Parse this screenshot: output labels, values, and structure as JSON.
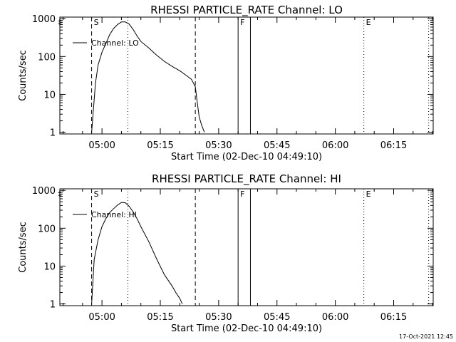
{
  "footer": {
    "timestamp": "17-Oct-2021 12:45"
  },
  "chart_data": [
    {
      "type": "line",
      "title": "RHESSI PARTICLE_RATE Channel: LO",
      "xlabel": "Start Time (02-Dec-10 04:49:10)",
      "ylabel": "Counts/sec",
      "y_scale": "log",
      "ylim": [
        0.9,
        1100
      ],
      "xlim": [
        "04:49:10",
        "06:25:10"
      ],
      "x_ticks": [
        "05:00",
        "05:15",
        "05:30",
        "05:45",
        "06:00",
        "06:15"
      ],
      "y_ticks": [
        "1",
        "10",
        "100",
        "1000"
      ],
      "legend": {
        "label": "Channel: LO",
        "position": "top-left"
      },
      "markers": [
        {
          "label": "S",
          "time": "04:57:20",
          "style": "dashed"
        },
        {
          "label": "",
          "time": "05:06:40",
          "style": "dotted"
        },
        {
          "label": "",
          "time": "05:24:00",
          "style": "dashed"
        },
        {
          "label": "F",
          "time": "05:35:00",
          "style": "solid"
        },
        {
          "label": "",
          "time": "05:38:10",
          "style": "solid"
        },
        {
          "label": "E",
          "time": "06:07:20",
          "style": "dotted"
        },
        {
          "label": "",
          "time": "06:24:00",
          "style": "dotted"
        }
      ],
      "series": [
        {
          "name": "Channel: LO",
          "x": [
            "04:57:20",
            "04:58:20",
            "04:59:00",
            "05:00:00",
            "05:01:00",
            "05:02:00",
            "05:03:00",
            "05:04:00",
            "05:05:00",
            "05:06:00",
            "05:07:00",
            "05:08:00",
            "05:09:00",
            "05:10:00",
            "05:12:00",
            "05:14:00",
            "05:16:00",
            "05:18:00",
            "05:20:00",
            "05:22:00",
            "05:23:00",
            "05:24:00",
            "05:24:30",
            "05:25:00",
            "05:25:40",
            "05:26:20"
          ],
          "y": [
            1,
            20,
            60,
            130,
            220,
            380,
            550,
            700,
            820,
            820,
            720,
            520,
            350,
            250,
            170,
            110,
            75,
            55,
            42,
            30,
            25,
            16,
            6,
            2.5,
            1.5,
            1
          ]
        }
      ]
    },
    {
      "type": "line",
      "title": "RHESSI PARTICLE_RATE Channel: HI",
      "xlabel": "Start Time (02-Dec-10 04:49:10)",
      "ylabel": "Counts/sec",
      "y_scale": "log",
      "ylim": [
        0.9,
        1100
      ],
      "xlim": [
        "04:49:10",
        "06:25:10"
      ],
      "x_ticks": [
        "05:00",
        "05:15",
        "05:30",
        "05:45",
        "06:00",
        "06:15"
      ],
      "y_ticks": [
        "1",
        "10",
        "100",
        "1000"
      ],
      "legend": {
        "label": "Channel: HI",
        "position": "top-left"
      },
      "markers": [
        {
          "label": "S",
          "time": "04:57:20",
          "style": "dashed"
        },
        {
          "label": "",
          "time": "05:06:40",
          "style": "dotted"
        },
        {
          "label": "",
          "time": "05:24:00",
          "style": "dashed"
        },
        {
          "label": "F",
          "time": "05:35:00",
          "style": "solid"
        },
        {
          "label": "",
          "time": "05:38:10",
          "style": "solid"
        },
        {
          "label": "E",
          "time": "06:07:20",
          "style": "dotted"
        },
        {
          "label": "",
          "time": "06:24:00",
          "style": "dotted"
        }
      ],
      "series": [
        {
          "name": "Channel: HI",
          "x": [
            "04:57:20",
            "04:58:00",
            "04:59:00",
            "05:00:00",
            "05:01:00",
            "05:02:00",
            "05:03:00",
            "05:04:00",
            "05:05:00",
            "05:06:00",
            "05:07:00",
            "05:08:00",
            "05:09:00",
            "05:10:00",
            "05:12:00",
            "05:14:00",
            "05:16:00",
            "05:18:00",
            "05:19:00",
            "05:20:00",
            "05:20:40"
          ],
          "y": [
            1,
            15,
            50,
            110,
            180,
            260,
            330,
            410,
            480,
            470,
            380,
            270,
            180,
            110,
            45,
            16,
            6,
            3,
            2,
            1.4,
            1
          ]
        }
      ]
    }
  ]
}
